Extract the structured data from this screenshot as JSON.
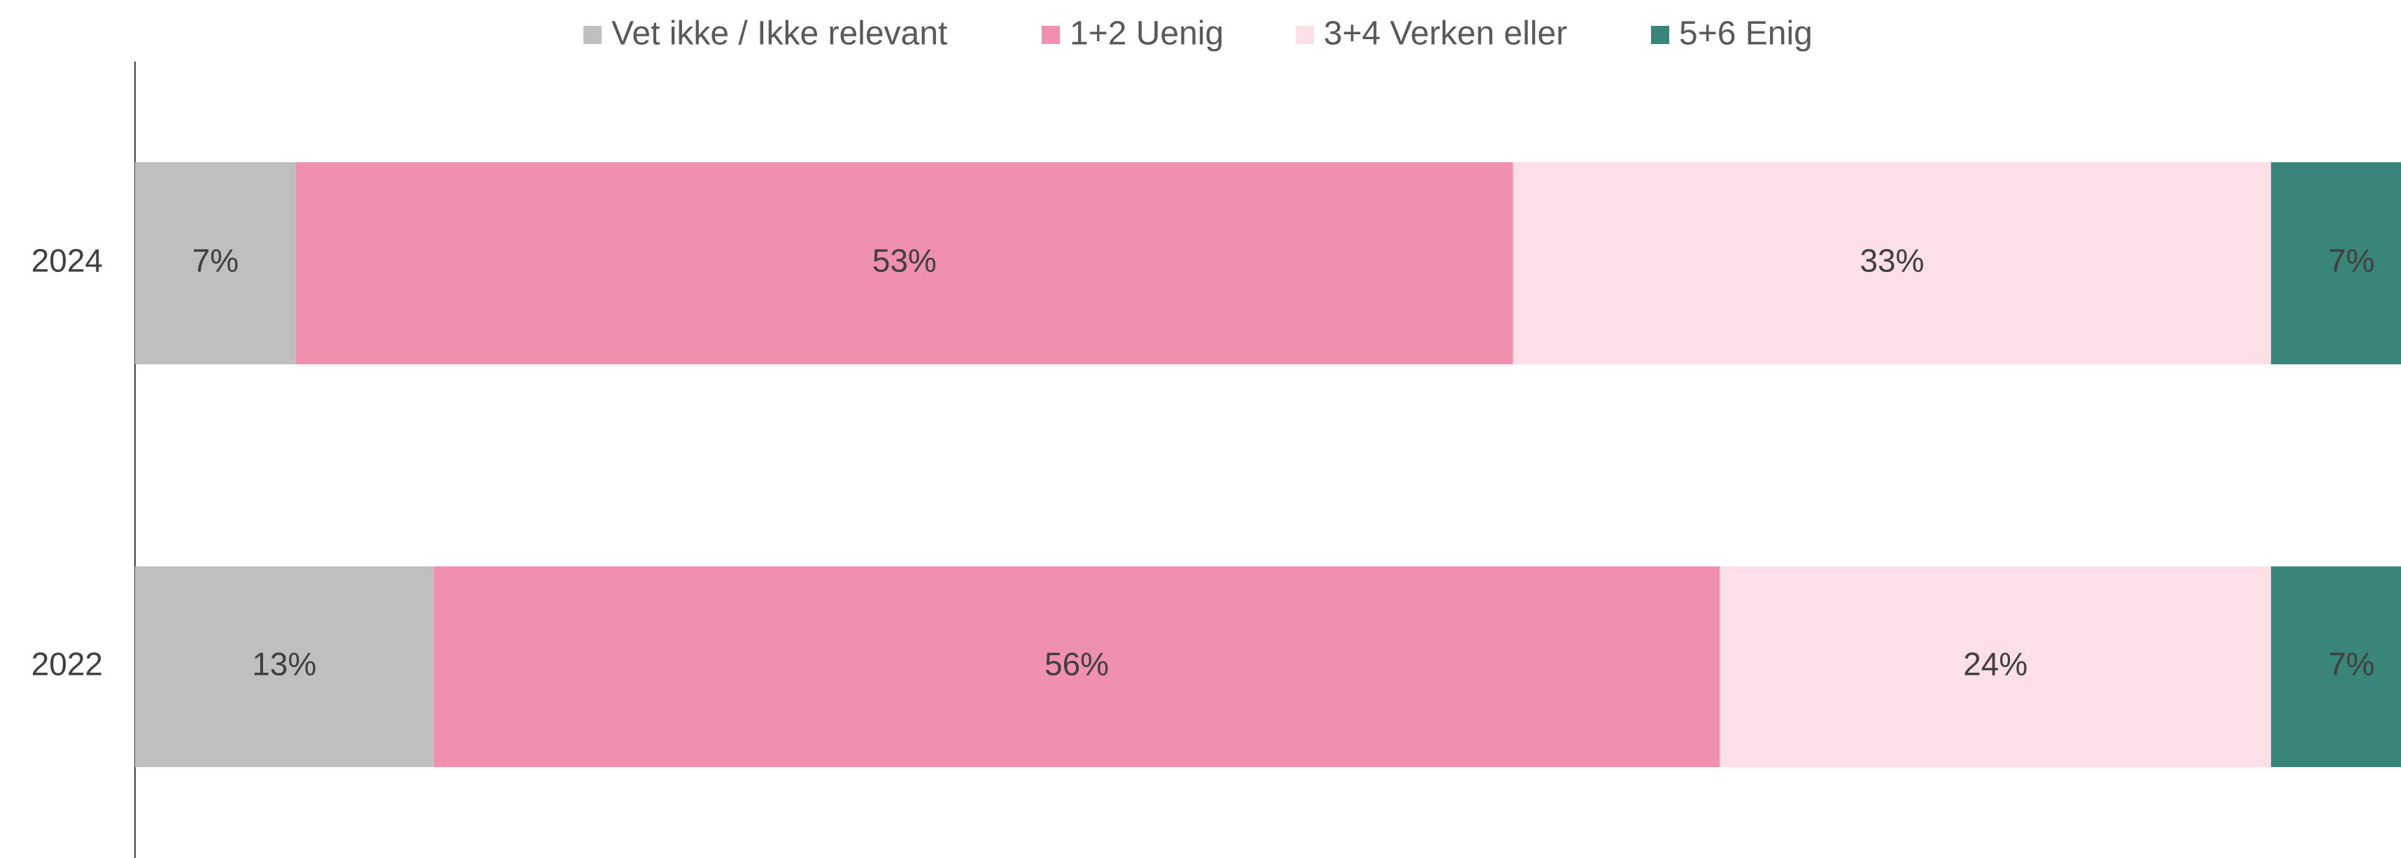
{
  "chart_data": {
    "type": "stacked-bar-horizontal",
    "categories": [
      "2024",
      "2022"
    ],
    "series": [
      {
        "name": "Vet ikke / Ikke relevant",
        "color": "#bfbfbf",
        "values": [
          7,
          13
        ],
        "value_labels": [
          "7%",
          "13%"
        ]
      },
      {
        "name": "1+2 Uenig",
        "color": "#f08fae",
        "values": [
          53,
          56
        ],
        "value_labels": [
          "53%",
          "56%"
        ]
      },
      {
        "name": "3+4 Verken eller",
        "color": "#fce0e5",
        "values": [
          33,
          24
        ],
        "value_labels": [
          "33%",
          "24%"
        ]
      },
      {
        "name": "5+6 Enig",
        "color": "#3a857a",
        "values": [
          7,
          7
        ],
        "value_labels": [
          "7%",
          "7%"
        ]
      }
    ],
    "xlim": [
      0,
      100
    ],
    "legend": "top"
  }
}
